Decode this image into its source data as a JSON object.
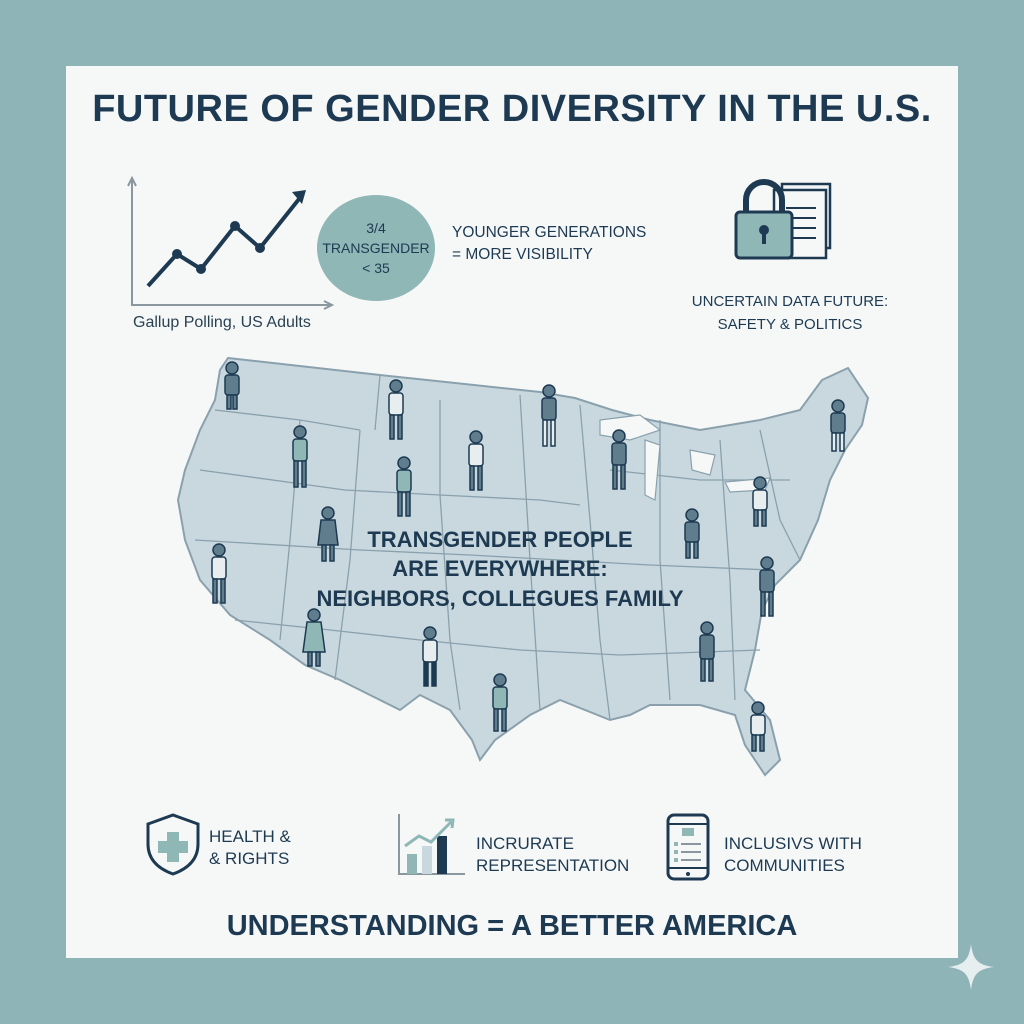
{
  "title": "FUTURE OF GENDER DIVERSITY IN THE U.S.",
  "trend": {
    "caption": "Gallup Polling, US Adults"
  },
  "stat": {
    "line1": "3/4",
    "line2": "TRANSGENDER",
    "line3": "< 35"
  },
  "younger": {
    "line1": "YOUNGER GENERATIONS",
    "line2": "= MORE VISIBILITY"
  },
  "uncertain": {
    "line1": "UNCERTAIN DATA FUTURE:",
    "line2": "SAFETY & POLITICS"
  },
  "map": {
    "line1": "TRANSGENDER PEOPLE",
    "line2": "ARE EVERYWHERE:",
    "line3": "NEIGHBORS, COLLEGUES FAMILY"
  },
  "features": [
    {
      "icon": "shield-cross-icon",
      "line1": "HEALTH &",
      "line2": "& RIGHTS"
    },
    {
      "icon": "bar-chart-icon",
      "line1": "INCRURATE",
      "line2": "REPRESENTATION"
    },
    {
      "icon": "phone-checklist-icon",
      "line1": "INCLUSIVS WITH",
      "line2": "COMMUNITIES"
    }
  ],
  "footer": "UNDERSTANDING = A BETTER AMERICA",
  "colors": {
    "background": "#8fb4b8",
    "card": "#f6f8f8",
    "text": "#1d3a52",
    "accent": "#8fb7b6",
    "map_fill": "#c9d8df"
  }
}
